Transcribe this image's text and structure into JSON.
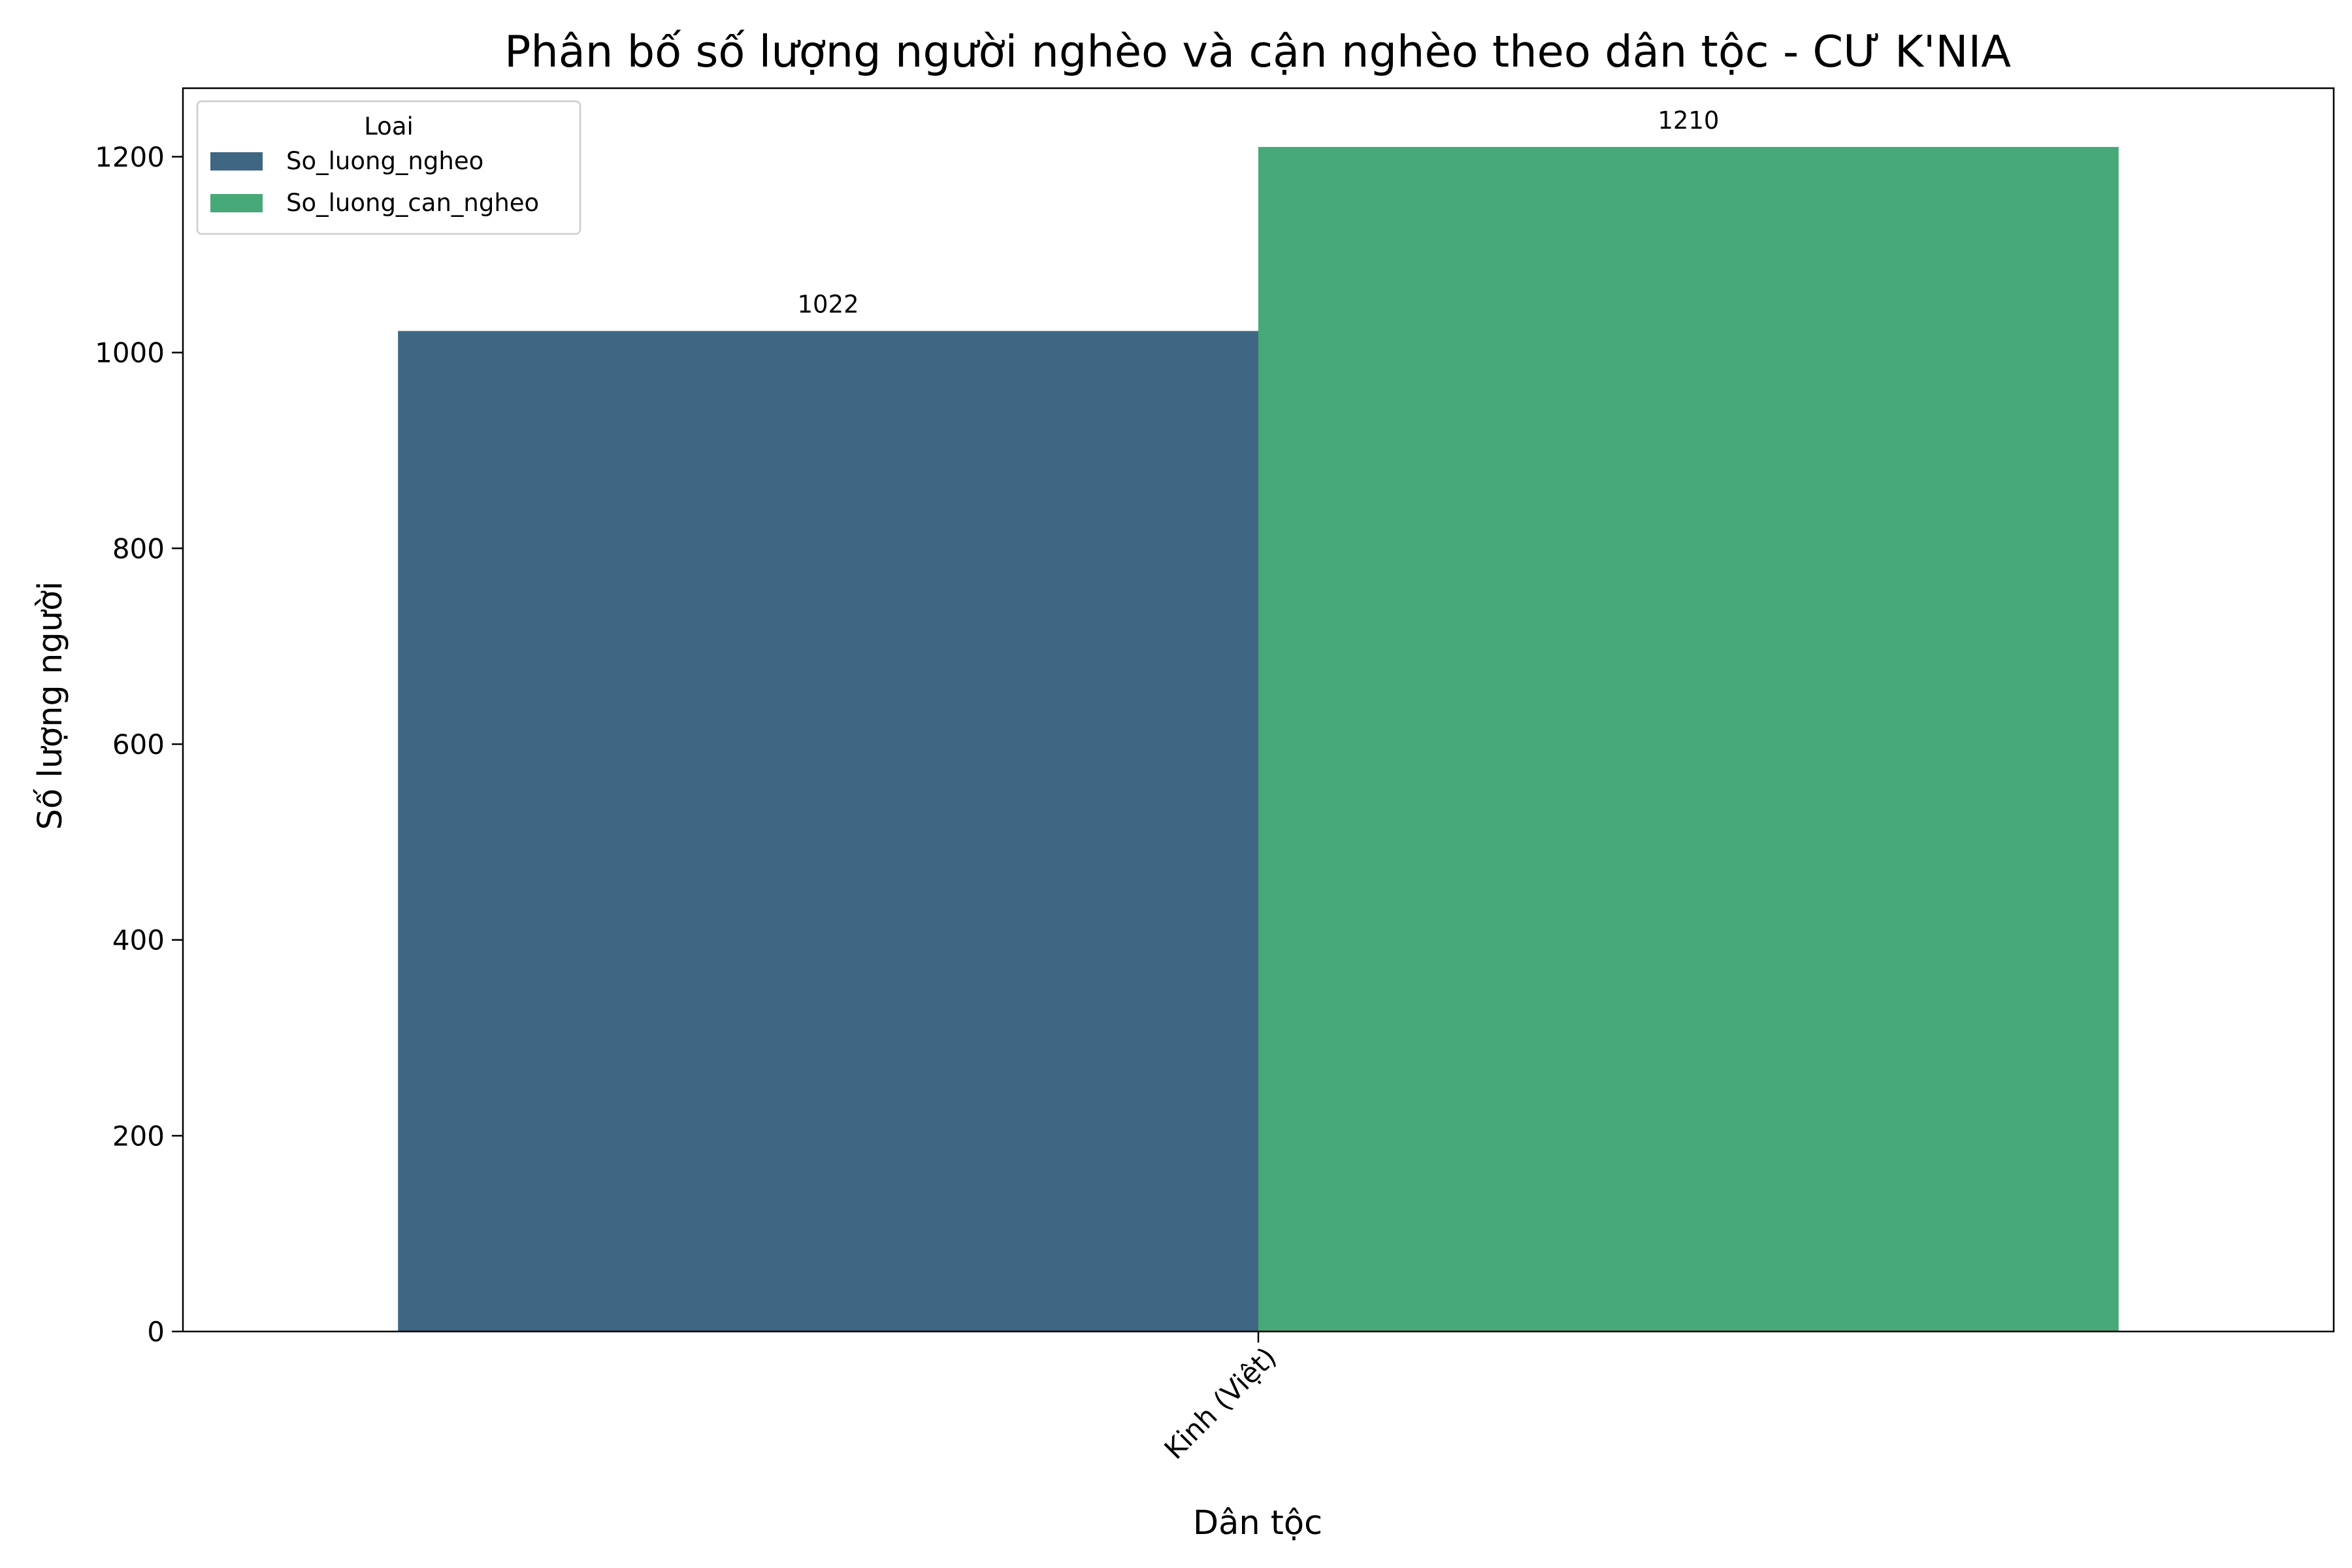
{
  "chart_data": {
    "type": "bar",
    "title": "Phân bố số lượng người nghèo và cận nghèo theo dân tộc - CƯ K'NIA",
    "xlabel": "Dân tộc",
    "ylabel": "Số lượng người",
    "categories": [
      "Kinh (Việt)"
    ],
    "series": [
      {
        "name": "So_luong_ngheo",
        "values": [
          1022
        ],
        "color": "#3f6783"
      },
      {
        "name": "So_luong_can_ngheo",
        "values": [
          1210
        ],
        "color": "#47a878"
      }
    ],
    "ylim": [
      0,
      1270
    ],
    "yticks": [
      0,
      200,
      400,
      600,
      800,
      1000,
      1200
    ],
    "legend": {
      "title": "Loai",
      "placement": "top-left"
    },
    "grid": false,
    "data_labels": true
  }
}
